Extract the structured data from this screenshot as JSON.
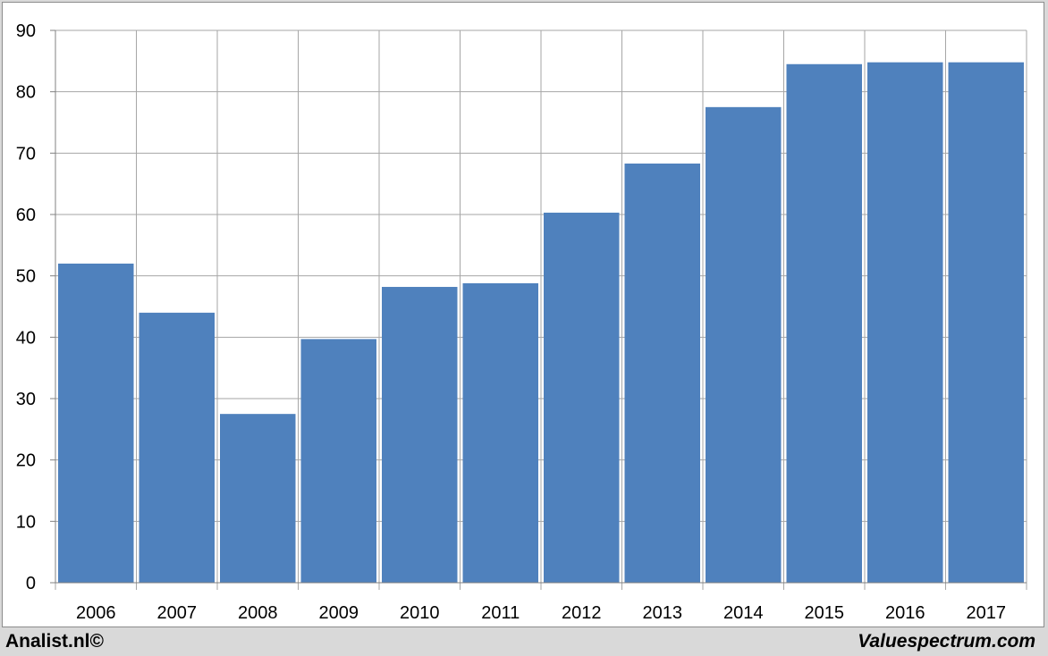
{
  "chart_data": {
    "type": "bar",
    "categories": [
      "2006",
      "2007",
      "2008",
      "2009",
      "2010",
      "2011",
      "2012",
      "2013",
      "2014",
      "2015",
      "2016",
      "2017"
    ],
    "values": [
      52,
      44,
      27.5,
      39.7,
      48.2,
      48.8,
      60.3,
      68.3,
      77.5,
      84.5,
      84.8,
      84.8
    ],
    "ylim": [
      0,
      90
    ],
    "yticks": [
      0,
      10,
      20,
      30,
      40,
      50,
      60,
      70,
      80,
      90
    ],
    "grid": true,
    "bar_color": "#4f81bd",
    "grid_color": "#a6a6a6"
  },
  "footer": {
    "left": "Analist.nl©",
    "right": "Valuespectrum.com"
  }
}
